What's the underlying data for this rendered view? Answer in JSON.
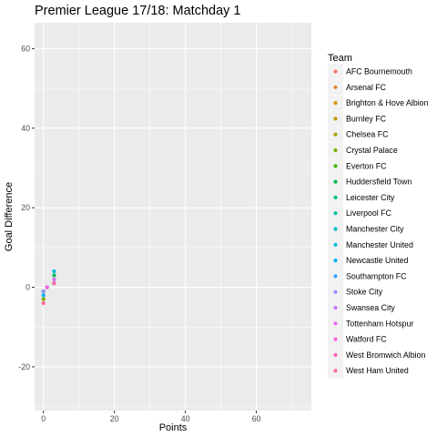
{
  "chart_data": {
    "type": "scatter",
    "title": "Premier League 17/18: Matchday 1",
    "xlabel": "Points",
    "ylabel": "Goal Difference",
    "xlim": [
      -2.5,
      75.5
    ],
    "ylim": [
      -31,
      66.5
    ],
    "x_ticks": [
      0,
      20,
      40,
      60
    ],
    "y_ticks": [
      -20,
      0,
      20,
      40,
      60
    ],
    "grid": true,
    "legend": {
      "title": "Team",
      "placement": "right"
    },
    "series": [
      {
        "name": "AFC Bournemouth",
        "color": "#F8766D",
        "x": 0,
        "y": -1
      },
      {
        "name": "Arsenal FC",
        "color": "#EA8331",
        "x": 3,
        "y": 1
      },
      {
        "name": "Brighton & Hove Albion",
        "color": "#D89000",
        "x": 0,
        "y": -2
      },
      {
        "name": "Burnley FC",
        "color": "#C09B00",
        "x": 3,
        "y": 1
      },
      {
        "name": "Chelsea FC",
        "color": "#A3A500",
        "x": 0,
        "y": -1
      },
      {
        "name": "Crystal Palace",
        "color": "#7CAE00",
        "x": 0,
        "y": -3
      },
      {
        "name": "Everton FC",
        "color": "#39B600",
        "x": 3,
        "y": 1
      },
      {
        "name": "Huddersfield Town",
        "color": "#00BB4E",
        "x": 3,
        "y": 3
      },
      {
        "name": "Leicester City",
        "color": "#00BF7D",
        "x": 0,
        "y": -1
      },
      {
        "name": "Liverpool FC",
        "color": "#00C1A3",
        "x": 1,
        "y": 0
      },
      {
        "name": "Manchester City",
        "color": "#00BFC4",
        "x": 3,
        "y": 2
      },
      {
        "name": "Manchester United",
        "color": "#00BAE0",
        "x": 3,
        "y": 4
      },
      {
        "name": "Newcastle United",
        "color": "#00B0F6",
        "x": 0,
        "y": -2
      },
      {
        "name": "Southampton FC",
        "color": "#35A2FF",
        "x": 1,
        "y": 0
      },
      {
        "name": "Stoke City",
        "color": "#9590FF",
        "x": 0,
        "y": -1
      },
      {
        "name": "Swansea City",
        "color": "#C77CFF",
        "x": 1,
        "y": 0
      },
      {
        "name": "Tottenham Hotspur",
        "color": "#E76BF3",
        "x": 3,
        "y": 2
      },
      {
        "name": "Watford FC",
        "color": "#FA62DB",
        "x": 1,
        "y": 0
      },
      {
        "name": "West Bromwich Albion",
        "color": "#FF62BC",
        "x": 3,
        "y": 1
      },
      {
        "name": "West Ham United",
        "color": "#FF6C91",
        "x": 0,
        "y": -4
      }
    ]
  }
}
